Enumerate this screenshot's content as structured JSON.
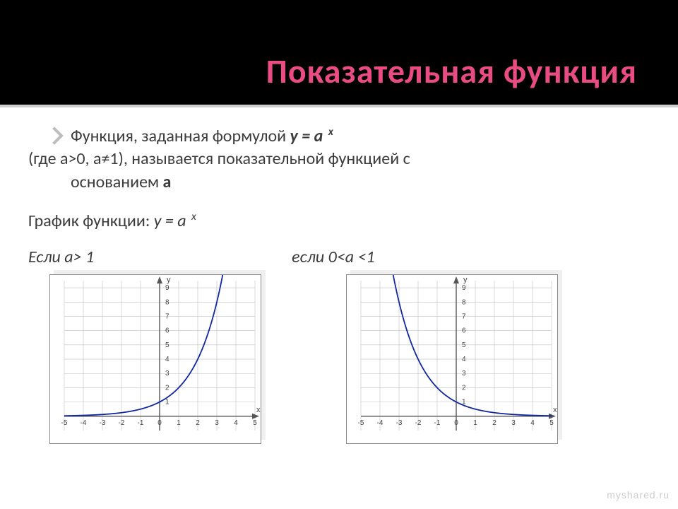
{
  "header": {
    "title": "Показательная функция",
    "title_color": "#e94c83",
    "bg": "#000000"
  },
  "body": {
    "line1_prefix": "Функция, заданная формулой ",
    "line1_formula_y": "у = а",
    "line1_exp": "х",
    "line2": "(где а>0, а≠1), называется показательной функцией с",
    "line2_cont": "основанием ",
    "line2_bold": "а",
    "line3_prefix": "График функции:  ",
    "line3_formula": "у = а",
    "line3_exp": "х",
    "cond_left_prefix": "Если а",
    "cond_left_rest": "> 1",
    "cond_right": "если 0<а <1"
  },
  "chart": {
    "xlim": [
      -5,
      5
    ],
    "ylim": [
      -1,
      9.5
    ],
    "xtick_labels": [
      "-5",
      "-4",
      "-3",
      "-2",
      "-1",
      "0",
      "1",
      "2",
      "3",
      "4",
      "5"
    ],
    "ytick_labels": [
      "1",
      "2",
      "3",
      "4",
      "5",
      "6",
      "7",
      "8",
      "9"
    ],
    "grid_color": "#bfbfbf",
    "axis_color": "#555555",
    "curve_color": "#1028a0",
    "curve_width": 1.8,
    "arrow_color": "#555555",
    "y_axis_label": "y",
    "x_axis_label": "x",
    "bg": "#ffffff",
    "border_color": "#888888",
    "base_growth": 2,
    "base_decay": 0.5,
    "font_size_ticks": 10,
    "font_size_axis": 11
  },
  "watermark": "myshared.ru"
}
